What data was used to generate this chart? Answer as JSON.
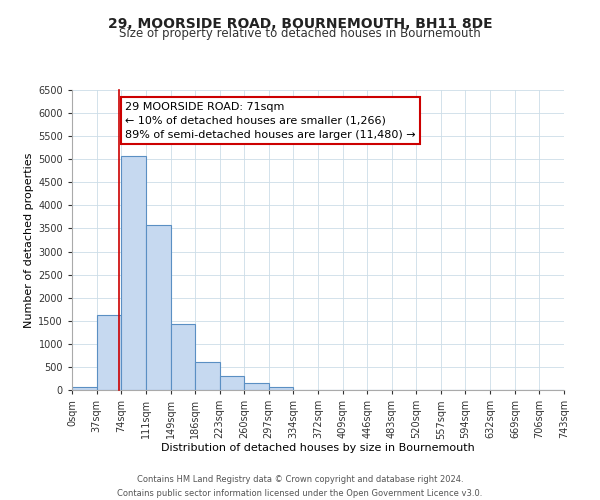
{
  "title": "29, MOORSIDE ROAD, BOURNEMOUTH, BH11 8DE",
  "subtitle": "Size of property relative to detached houses in Bournemouth",
  "xlabel": "Distribution of detached houses by size in Bournemouth",
  "ylabel": "Number of detached properties",
  "bin_edges": [
    0,
    37,
    74,
    111,
    149,
    186,
    223,
    260,
    297,
    334,
    372,
    409,
    446,
    483,
    520,
    557,
    594,
    632,
    669,
    706,
    743
  ],
  "bar_heights": [
    60,
    1630,
    5080,
    3580,
    1420,
    610,
    300,
    150,
    60,
    0,
    0,
    0,
    0,
    0,
    0,
    0,
    0,
    0,
    0,
    0
  ],
  "bar_color": "#c6d9f0",
  "bar_edge_color": "#5a8fc3",
  "property_line_x": 71,
  "property_line_color": "#cc0000",
  "annotation_line1": "29 MOORSIDE ROAD: 71sqm",
  "annotation_line2": "← 10% of detached houses are smaller (1,266)",
  "annotation_line3": "89% of semi-detached houses are larger (11,480) →",
  "annotation_box_color": "#ffffff",
  "annotation_box_edge_color": "#cc0000",
  "ylim": [
    0,
    6500
  ],
  "yticks": [
    0,
    500,
    1000,
    1500,
    2000,
    2500,
    3000,
    3500,
    4000,
    4500,
    5000,
    5500,
    6000,
    6500
  ],
  "tick_labels": [
    "0sqm",
    "37sqm",
    "74sqm",
    "111sqm",
    "149sqm",
    "186sqm",
    "223sqm",
    "260sqm",
    "297sqm",
    "334sqm",
    "372sqm",
    "409sqm",
    "446sqm",
    "483sqm",
    "520sqm",
    "557sqm",
    "594sqm",
    "632sqm",
    "669sqm",
    "706sqm",
    "743sqm"
  ],
  "footer_line1": "Contains HM Land Registry data © Crown copyright and database right 2024.",
  "footer_line2": "Contains public sector information licensed under the Open Government Licence v3.0.",
  "bg_color": "#ffffff",
  "grid_color": "#ccdde8",
  "title_fontsize": 10,
  "subtitle_fontsize": 8.5,
  "axis_label_fontsize": 8,
  "tick_fontsize": 7,
  "annotation_fontsize": 8,
  "footer_fontsize": 6
}
